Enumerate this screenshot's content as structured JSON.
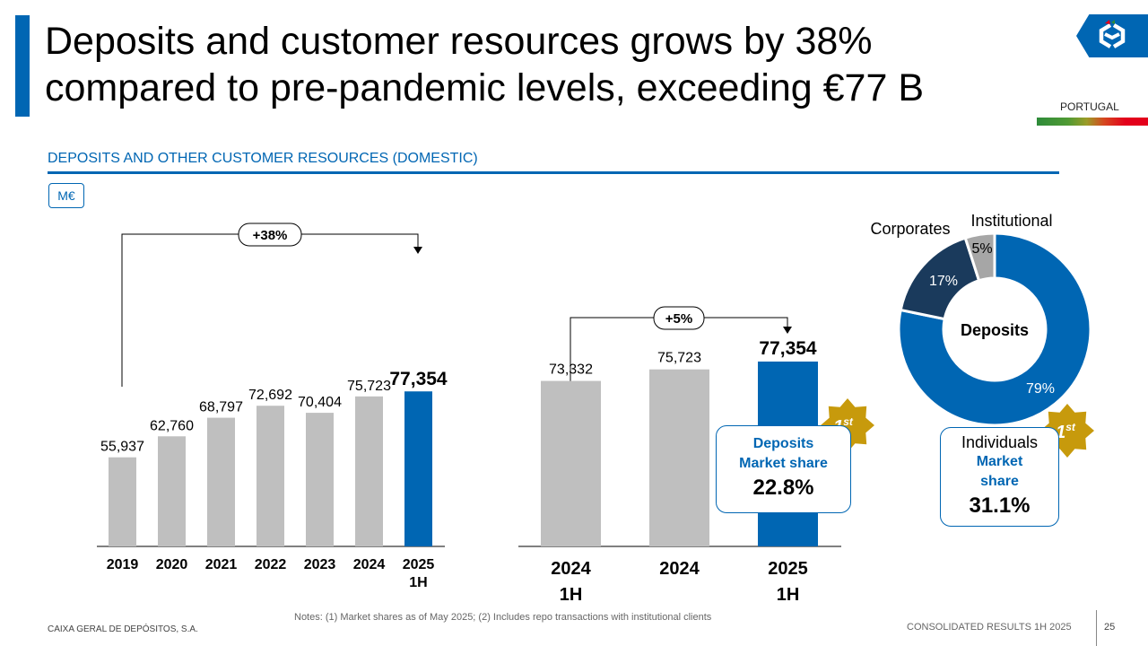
{
  "header": {
    "title_line1": "Deposits and customer resources grows by 38%",
    "title_line2": "compared to pre-pandemic levels, exceeding €77 B",
    "region_label": "PORTUGAL",
    "logo_icon": "cgd-logo-icon"
  },
  "section": {
    "title": "DEPOSITS AND OTHER CUSTOMER RESOURCES (DOMESTIC)",
    "unit": "M€"
  },
  "colors": {
    "brand_blue": "#0066b3",
    "bar_grey": "#bfbfbf",
    "dark_navy": "#1a3a5c",
    "badge_gold": "#c79a0c"
  },
  "chart_data": [
    {
      "type": "bar",
      "categories": [
        "2019",
        "2020",
        "2021",
        "2022",
        "2023",
        "2024",
        "2025 1H"
      ],
      "category_lines": [
        [
          "2019"
        ],
        [
          "2020"
        ],
        [
          "2021"
        ],
        [
          "2022"
        ],
        [
          "2023"
        ],
        [
          "2024"
        ],
        [
          "2025",
          "1H"
        ]
      ],
      "values": [
        55937,
        62760,
        68797,
        72692,
        70404,
        75723,
        77354
      ],
      "labels": [
        "55,937",
        "62,760",
        "68,797",
        "72,692",
        "70,404",
        "75,723",
        "77,354"
      ],
      "highlight_index": 6,
      "growth_label": "+38%",
      "unit": "M€"
    },
    {
      "type": "bar",
      "categories": [
        "2024 1H",
        "2024",
        "2025 1H"
      ],
      "category_lines": [
        [
          "2024",
          "1H"
        ],
        [
          "2024"
        ],
        [
          "2025",
          "1H"
        ]
      ],
      "values": [
        73332,
        75723,
        77354
      ],
      "labels": [
        "73,332",
        "75,723",
        "77,354"
      ],
      "highlight_index": 2,
      "growth_label": "+5%",
      "unit": "M€"
    },
    {
      "type": "pie",
      "title": "Deposits",
      "slices": [
        {
          "name": "Individuals",
          "value": 79,
          "label": "79%",
          "color": "#0066b3"
        },
        {
          "name": "Corporates",
          "value": 17,
          "label": "17%",
          "color": "#1a3a5c"
        },
        {
          "name": "Institutional",
          "value": 5,
          "label": "5%",
          "color": "#a6a6a6"
        }
      ]
    }
  ],
  "callouts": {
    "deposits_market_share": {
      "line1": "Deposits",
      "line2": "Market share",
      "value": "22.8%",
      "badge_rank": "1",
      "badge_suffix": "st"
    },
    "individuals_market_share": {
      "line0": "Individuals",
      "line1": "Market",
      "line2": "share",
      "value": "31.1%",
      "badge_rank": "1",
      "badge_suffix": "st"
    }
  },
  "footer": {
    "notes": "Notes: (1) Market shares as of May 2025; (2) Includes repo transactions with institutional clients",
    "company": "CAIXA GERAL DE DEPÓSITOS, S.A.",
    "report": "CONSOLIDATED RESULTS 1H 2025",
    "page": "25"
  }
}
